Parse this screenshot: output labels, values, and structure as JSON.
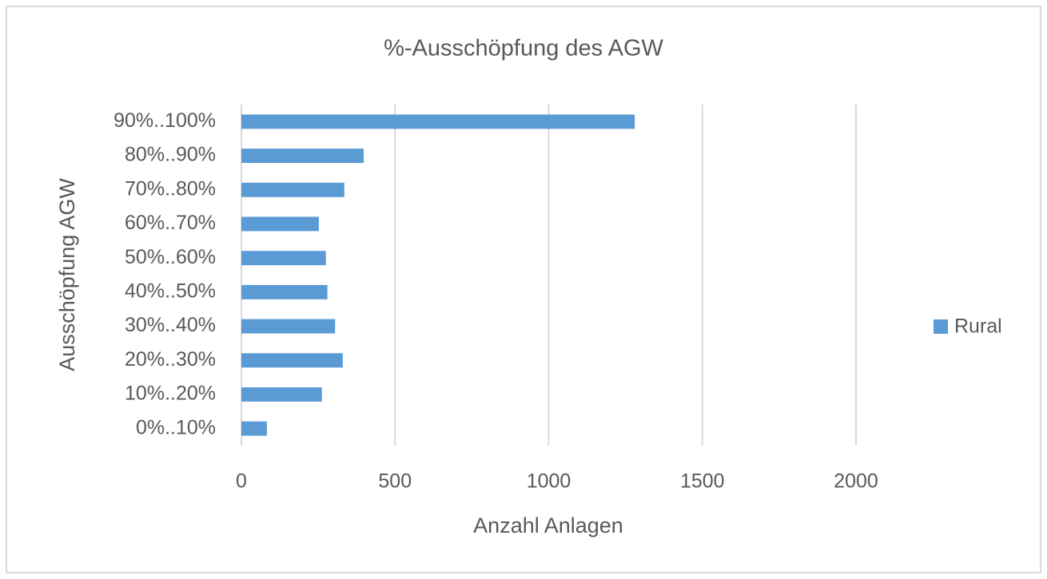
{
  "chart_data": {
    "type": "bar",
    "orientation": "horizontal",
    "title": "%-Ausschöpfung des AGW",
    "x_label": "Anzahl Anlagen",
    "y_label": "Ausschöpfung AGW",
    "categories": [
      "0%..10%",
      "10%..20%",
      "20%..30%",
      "30%..40%",
      "40%..50%",
      "50%..60%",
      "60%..70%",
      "70%..80%",
      "80%..90%",
      "90%..100%"
    ],
    "series": [
      {
        "name": "Rural",
        "color": "#5b9bd5",
        "values": [
          83,
          262,
          330,
          305,
          280,
          275,
          252,
          335,
          398,
          1280
        ]
      }
    ],
    "xlim": [
      0,
      2000
    ],
    "xticks": [
      0,
      500,
      1000,
      1500,
      2000
    ],
    "grid": true,
    "legend": "right"
  }
}
